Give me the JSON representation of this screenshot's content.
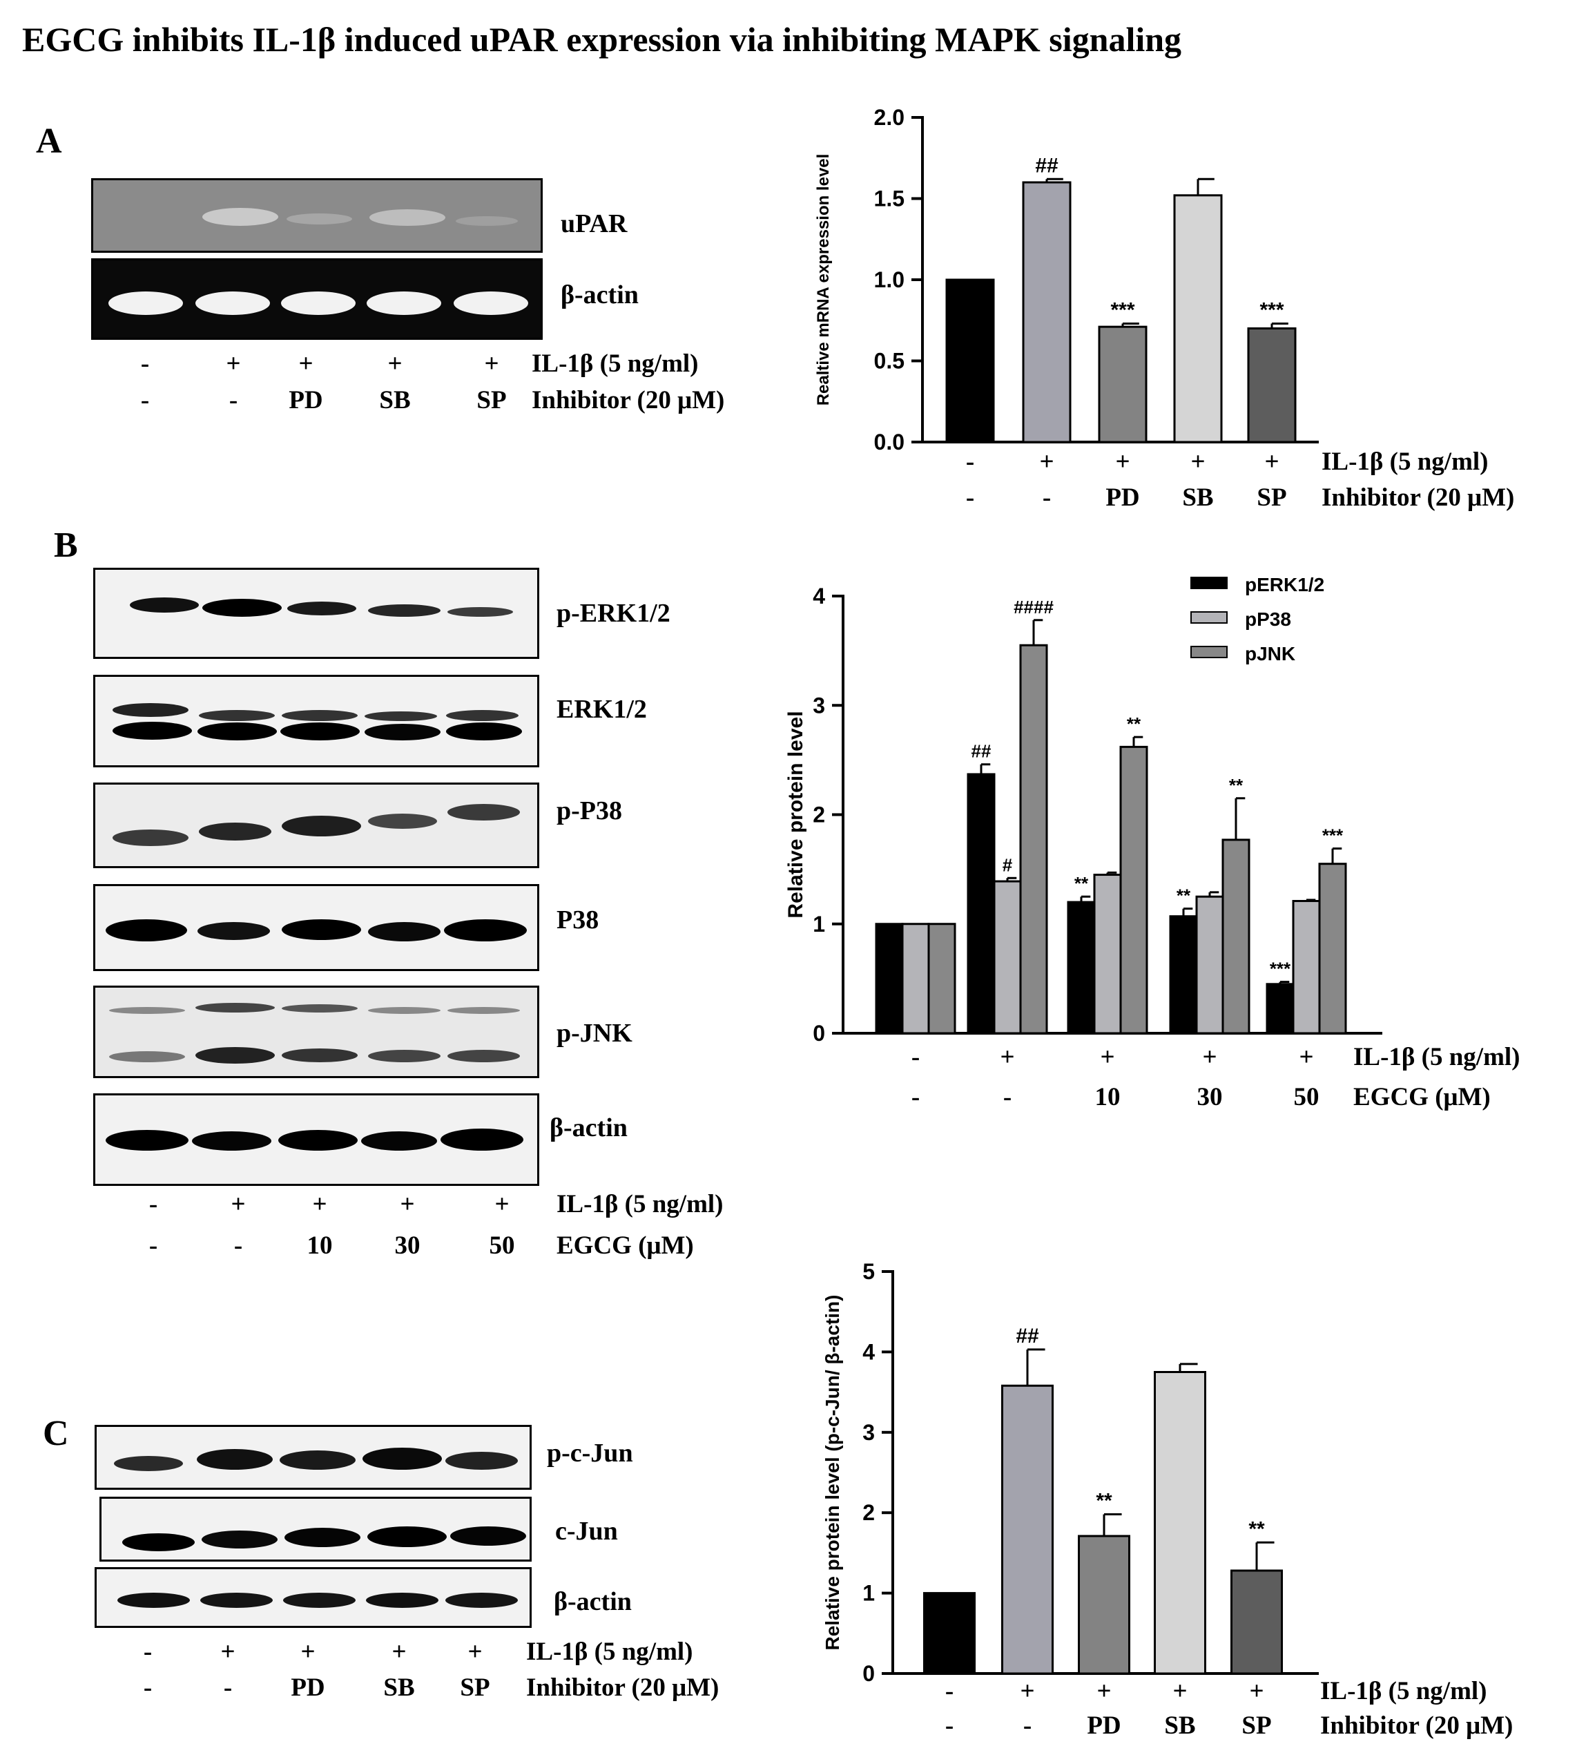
{
  "figure": {
    "title": "EGCG inhibits IL-1β induced uPAR expression via inhibiting MAPK signaling",
    "panels": {
      "a": "A",
      "b": "B",
      "c": "C"
    }
  },
  "blot_a": {
    "rows": [
      "uPAR",
      "β-actin"
    ],
    "treatment": {
      "row1": [
        "-",
        "+",
        "+",
        "+",
        "+"
      ],
      "row1_label": "IL-1β (5 ng/ml)",
      "row2": [
        "-",
        "-",
        "PD",
        "SB",
        "SP"
      ],
      "row2_label": "Inhibitor (20 μM)"
    }
  },
  "blot_b": {
    "rows": [
      "p-ERK1/2",
      "ERK1/2",
      "p-P38",
      "P38",
      "p-JNK",
      "β-actin"
    ],
    "treatment": {
      "row1": [
        "-",
        "+",
        "+",
        "+",
        "+"
      ],
      "row1_label": "IL-1β (5 ng/ml)",
      "row2": [
        "-",
        "-",
        "10",
        "30",
        "50"
      ],
      "row2_label": "EGCG (μM)"
    }
  },
  "blot_c": {
    "rows": [
      "p-c-Jun",
      "c-Jun",
      "β-actin"
    ],
    "treatment": {
      "row1": [
        "-",
        "+",
        "+",
        "+",
        "+"
      ],
      "row1_label": "IL-1β (5 ng/ml)",
      "row2": [
        "-",
        "-",
        "PD",
        "SB",
        "SP"
      ],
      "row2_label": "Inhibitor (20 μM)"
    }
  },
  "chart_data": [
    {
      "type": "bar",
      "ylabel": "Realtive mRNA expression level",
      "ylim": [
        0,
        2.0
      ],
      "yticks": [
        "0.0",
        "0.5",
        "1.0",
        "1.5",
        "2.0"
      ],
      "categories": [
        "1",
        "2",
        "3",
        "4",
        "5"
      ],
      "values": [
        1.0,
        1.6,
        0.71,
        1.52,
        0.7
      ],
      "errors": [
        0,
        0.02,
        0.02,
        0.1,
        0.03
      ],
      "bar_colors": [
        "#000000",
        "#a3a3ad",
        "#838383",
        "#d5d5d5",
        "#5d5d5d"
      ],
      "annotations": [
        "",
        "##",
        "***",
        "",
        "***"
      ],
      "x_rows": [
        {
          "values": [
            "-",
            "+",
            "+",
            "+",
            "+"
          ],
          "label": "IL-1β (5 ng/ml)"
        },
        {
          "values": [
            "-",
            "-",
            "PD",
            "SB",
            "SP"
          ],
          "label": "Inhibitor (20 μM)"
        }
      ]
    },
    {
      "type": "bar",
      "ylabel": "Relative protein level",
      "ylim": [
        0,
        4
      ],
      "yticks": [
        "0",
        "1",
        "2",
        "3",
        "4"
      ],
      "categories": [
        "1",
        "2",
        "3",
        "4",
        "5"
      ],
      "series": [
        {
          "name": "pERK1/2",
          "color": "#000000",
          "values": [
            1.0,
            2.37,
            1.2,
            1.07,
            0.45
          ],
          "errors": [
            0,
            0.09,
            0.05,
            0.07,
            0.02
          ],
          "annotations": [
            "",
            "##",
            "**",
            "**",
            "***"
          ]
        },
        {
          "name": "pP38",
          "color": "#b4b4b8",
          "values": [
            1.0,
            1.39,
            1.45,
            1.25,
            1.21
          ],
          "errors": [
            0,
            0.03,
            0.02,
            0.04,
            0.01
          ],
          "annotations": [
            "",
            "#",
            "",
            "",
            ""
          ]
        },
        {
          "name": "pJNK",
          "color": "#888888",
          "values": [
            1.0,
            3.55,
            2.62,
            1.77,
            1.55
          ],
          "errors": [
            0,
            0.23,
            0.09,
            0.38,
            0.14
          ],
          "annotations": [
            "",
            "####",
            "**",
            "**",
            "***"
          ]
        }
      ],
      "legend": "top-right",
      "x_rows": [
        {
          "values": [
            "-",
            "+",
            "+",
            "+",
            "+"
          ],
          "label": "IL-1β (5 ng/ml)"
        },
        {
          "values": [
            "-",
            "-",
            "10",
            "30",
            "50"
          ],
          "label": "EGCG (μM)"
        }
      ]
    },
    {
      "type": "bar",
      "ylabel": "Relative protein level (p-c-Jun/ β-actin)",
      "ylim": [
        0,
        5
      ],
      "yticks": [
        "0",
        "1",
        "2",
        "3",
        "4",
        "5"
      ],
      "categories": [
        "1",
        "2",
        "3",
        "4",
        "5"
      ],
      "values": [
        1.0,
        3.58,
        1.71,
        3.75,
        1.28
      ],
      "errors": [
        0,
        0.45,
        0.27,
        0.1,
        0.35
      ],
      "bar_colors": [
        "#000000",
        "#a3a3ad",
        "#838383",
        "#d5d5d5",
        "#5d5d5d"
      ],
      "annotations": [
        "",
        "##",
        "**",
        "",
        "**"
      ],
      "x_rows": [
        {
          "values": [
            "-",
            "+",
            "+",
            "+",
            "+"
          ],
          "label": "IL-1β (5 ng/ml)"
        },
        {
          "values": [
            "-",
            "-",
            "PD",
            "SB",
            "SP"
          ],
          "label": "Inhibitor (20 μM)"
        }
      ]
    }
  ]
}
